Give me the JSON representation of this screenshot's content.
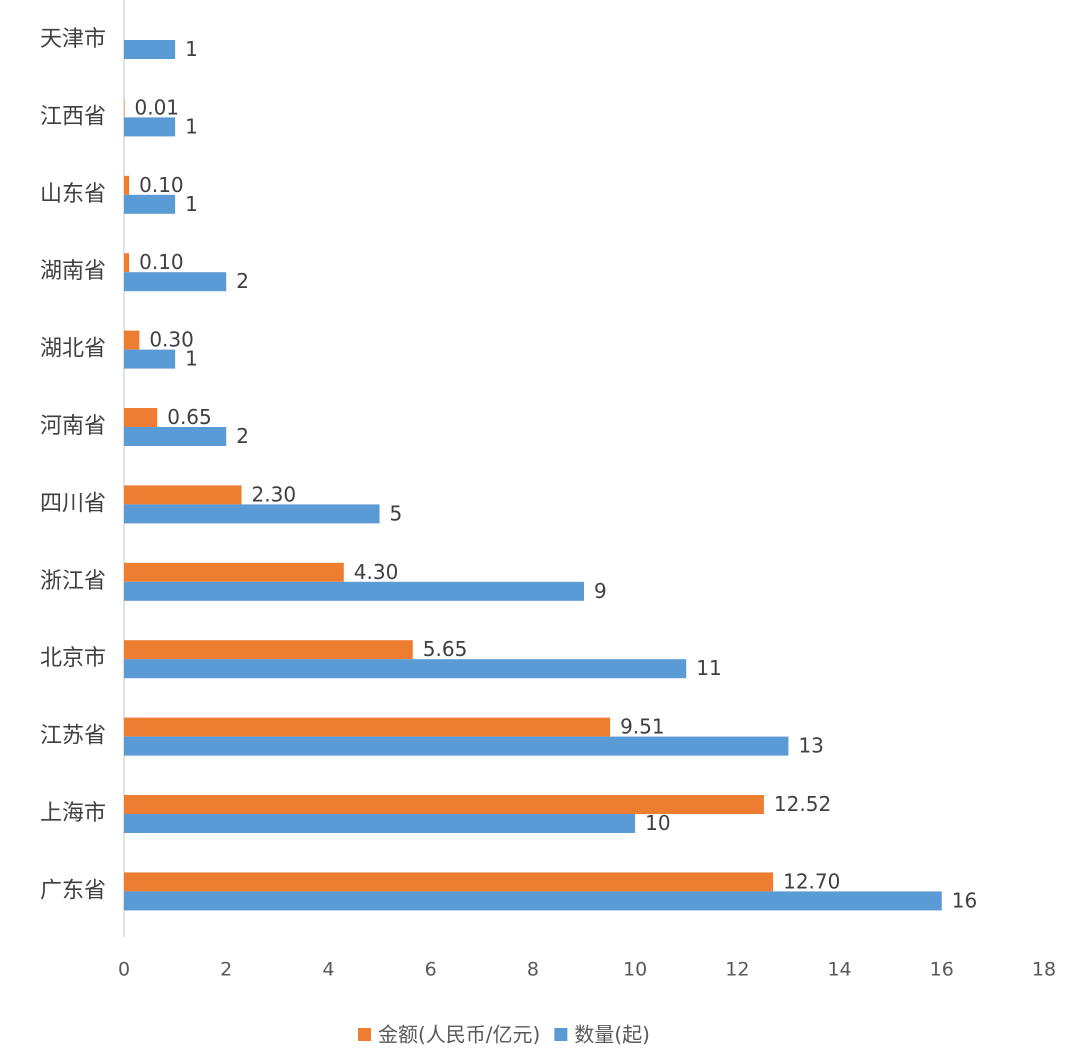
{
  "chart_data": {
    "type": "hbar",
    "categories": [
      "天津市",
      "江西省",
      "山东省",
      "湖南省",
      "湖北省",
      "河南省",
      "四川省",
      "浙江省",
      "北京市",
      "江苏省",
      "上海市",
      "广东省"
    ],
    "series": [
      {
        "name": "金额(人民币/亿元)",
        "color": "#ed7d31",
        "values": [
          null,
          0.01,
          0.1,
          0.1,
          0.3,
          0.65,
          2.3,
          4.3,
          5.65,
          9.51,
          12.52,
          12.7
        ],
        "value_labels": [
          null,
          "0.01",
          "0.10",
          "0.10",
          "0.30",
          "0.65",
          "2.30",
          "4.30",
          "5.65",
          "9.51",
          "12.52",
          "12.70"
        ]
      },
      {
        "name": "数量(起)",
        "color": "#5b9bd5",
        "values": [
          1,
          1,
          1,
          2,
          1,
          2,
          5,
          9,
          11,
          13,
          10,
          16
        ]
      }
    ],
    "xlim": [
      0,
      18
    ],
    "xticks": [
      0,
      2,
      4,
      6,
      8,
      10,
      12,
      14,
      16,
      18
    ]
  }
}
